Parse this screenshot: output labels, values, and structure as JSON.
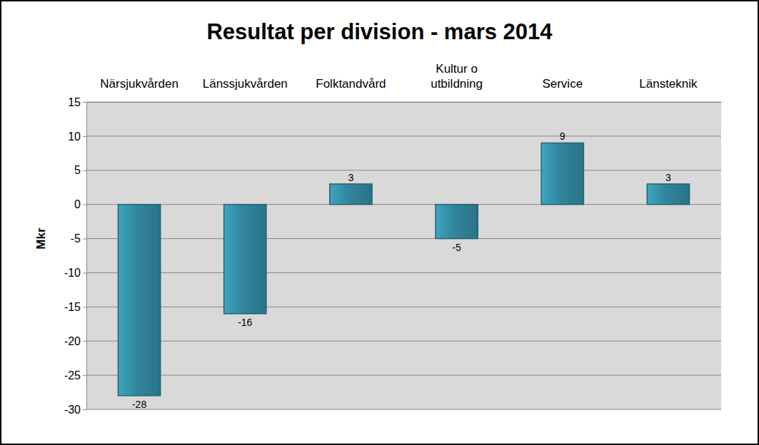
{
  "chart_data": {
    "type": "bar",
    "title": "Resultat per division - mars 2014",
    "y_label": "Mkr",
    "categories": [
      "Närsjukvården",
      "Länssjukvården",
      "Folktandvård",
      "Kultur o utbildning",
      "Service",
      "Länsteknik"
    ],
    "values": [
      -28,
      -16,
      3,
      -5,
      9,
      3
    ],
    "color": "#31859c",
    "ylim": [
      -30,
      15
    ],
    "yticks": [
      -30,
      -25,
      -20,
      -15,
      -10,
      -5,
      0,
      5,
      10,
      15
    ],
    "grid": true,
    "data_labels": true
  }
}
